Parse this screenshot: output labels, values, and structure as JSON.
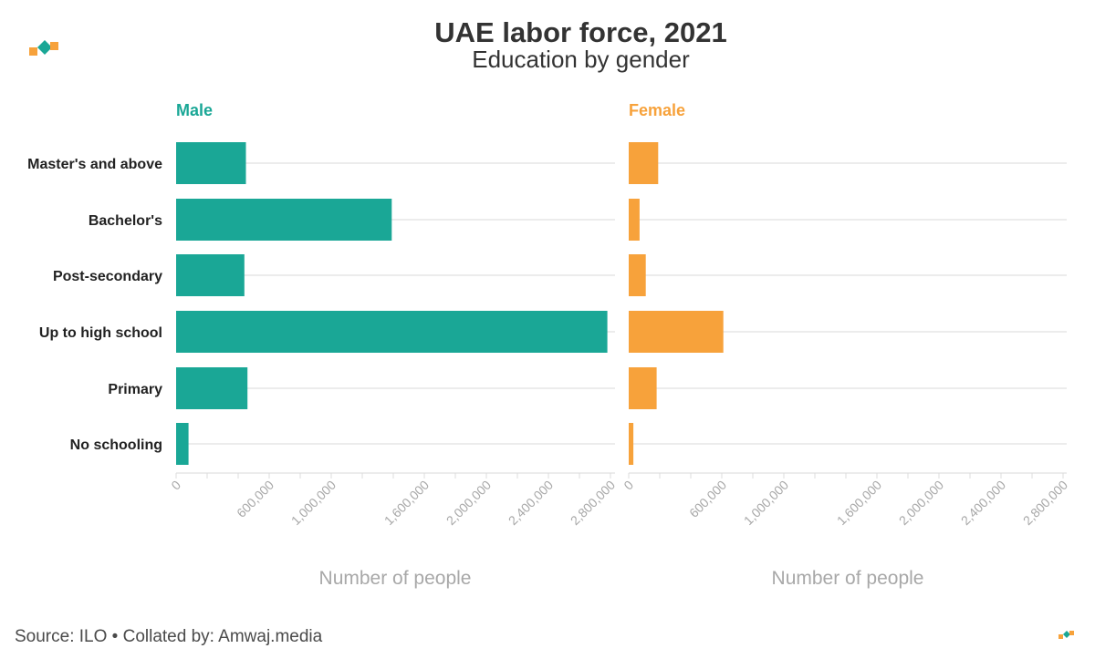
{
  "header": {
    "title": "UAE labor force, 2021",
    "subtitle": "Education by gender"
  },
  "footer": {
    "source": "Source: ILO • Collated by: Amwaj.media"
  },
  "logo": {
    "icon": "amwaj-logo-icon",
    "colors": [
      "#f7a23b",
      "#1aa796"
    ]
  },
  "chart_data": {
    "type": "bar",
    "orientation": "horizontal",
    "categories": [
      "Master's and above",
      "Bachelor's",
      "Post-secondary",
      "Up to high school",
      "Primary",
      "No schooling"
    ],
    "xlim": [
      0,
      2800000
    ],
    "tick_values": [
      0,
      600000,
      1000000,
      1600000,
      2000000,
      2400000,
      2800000
    ],
    "tick_labels": [
      "0",
      "600,000",
      "1,000,000",
      "1,600,000",
      "2,000,000",
      "2,400,000",
      "2,800,000"
    ],
    "minor_tick_step": 200000,
    "grid": true,
    "panels": [
      {
        "name": "Male",
        "color": "#1aa796",
        "xlabel": "Number of people",
        "values": [
          450000,
          1390000,
          440000,
          2780000,
          460000,
          80000
        ]
      },
      {
        "name": "Female",
        "color": "#f7a23b",
        "xlabel": "Number of people",
        "values": [
          190000,
          70000,
          110000,
          610000,
          180000,
          30000
        ]
      }
    ]
  }
}
